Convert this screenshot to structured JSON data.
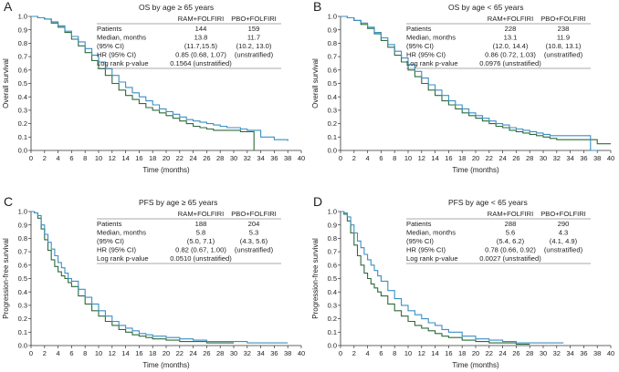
{
  "colors": {
    "ram": "#3a8fc4",
    "pbo": "#2d6b3c",
    "axis": "#333333"
  },
  "chart_data": [
    {
      "type": "line",
      "panel_letter": "A",
      "title": "OS by age ≥ 65 years",
      "xlabel": "Time (months)",
      "ylabel": "Overall survival",
      "xlim": [
        0,
        40
      ],
      "ylim": [
        0,
        1
      ],
      "xticks": [
        "0",
        "2",
        "4",
        "6",
        "8",
        "10",
        "12",
        "14",
        "16",
        "18",
        "20",
        "22",
        "24",
        "26",
        "28",
        "30",
        "32",
        "34",
        "36",
        "38",
        "40"
      ],
      "yticks": [
        "0.0",
        "0.1",
        "0.2",
        "0.3",
        "0.4",
        "0.5",
        "0.6",
        "0.7",
        "0.8",
        "0.9",
        "1.0"
      ],
      "table": {
        "header": [
          "",
          "RAM+FOLFIRI",
          "PBO+FOLFIRI"
        ],
        "rows": [
          [
            "Patients",
            "144",
            "159"
          ],
          [
            "Median, months",
            "13.8",
            "11.7"
          ],
          [
            "(95% CI)",
            "(11.7,15.5)",
            "(10.2, 13.0)"
          ],
          [
            "HR (95% CI)",
            "0.85 (0.68, 1.07)",
            "(unstratified)"
          ],
          [
            "Log rank p-value",
            "0.1564 (unstratified)",
            ""
          ]
        ]
      },
      "series": [
        {
          "name": "RAM+FOLFIRI",
          "x": [
            0,
            1,
            2,
            3,
            4,
            5,
            6,
            7,
            8,
            9,
            10,
            11,
            12,
            13,
            14,
            15,
            16,
            17,
            18,
            19,
            20,
            21,
            22,
            23,
            24,
            25,
            26,
            27,
            28,
            29,
            30,
            31,
            32,
            33,
            34,
            35,
            36,
            37,
            38
          ],
          "y": [
            1.0,
            0.99,
            0.98,
            0.96,
            0.93,
            0.89,
            0.85,
            0.81,
            0.76,
            0.71,
            0.66,
            0.61,
            0.56,
            0.51,
            0.47,
            0.43,
            0.4,
            0.37,
            0.34,
            0.31,
            0.29,
            0.27,
            0.25,
            0.23,
            0.22,
            0.21,
            0.2,
            0.19,
            0.18,
            0.17,
            0.17,
            0.16,
            0.15,
            0.15,
            0.1,
            0.1,
            0.08,
            0.08,
            0.07
          ]
        },
        {
          "name": "PBO+FOLFIRI",
          "x": [
            0,
            1,
            2,
            3,
            4,
            5,
            6,
            7,
            8,
            9,
            10,
            11,
            12,
            13,
            14,
            15,
            16,
            17,
            18,
            19,
            20,
            21,
            22,
            23,
            24,
            25,
            26,
            27,
            28,
            29,
            30,
            31,
            32,
            33
          ],
          "y": [
            1.0,
            0.99,
            0.98,
            0.95,
            0.92,
            0.88,
            0.83,
            0.78,
            0.73,
            0.67,
            0.61,
            0.56,
            0.5,
            0.45,
            0.41,
            0.38,
            0.35,
            0.32,
            0.3,
            0.28,
            0.26,
            0.24,
            0.22,
            0.2,
            0.18,
            0.17,
            0.16,
            0.15,
            0.15,
            0.15,
            0.15,
            0.14,
            0.14,
            0.0
          ]
        }
      ]
    },
    {
      "type": "line",
      "panel_letter": "B",
      "title": "OS by age < 65 years",
      "xlabel": "Time (months)",
      "ylabel": "Overall survival",
      "xlim": [
        0,
        40
      ],
      "ylim": [
        0,
        1
      ],
      "xticks": [
        "0",
        "2",
        "4",
        "6",
        "8",
        "10",
        "12",
        "14",
        "16",
        "18",
        "20",
        "22",
        "24",
        "26",
        "28",
        "30",
        "32",
        "34",
        "36",
        "38",
        "40"
      ],
      "yticks": [
        "0.0",
        "0.1",
        "0.2",
        "0.3",
        "0.4",
        "0.5",
        "0.6",
        "0.7",
        "0.8",
        "0.9",
        "1.0"
      ],
      "table": {
        "header": [
          "",
          "RAM+FOLFIRI",
          "PBO+FOLFIRI"
        ],
        "rows": [
          [
            "Patients",
            "228",
            "238"
          ],
          [
            "Median, months",
            "13.1",
            "11.9"
          ],
          [
            "(95% CI)",
            "(12.0, 14.4)",
            "(10.8, 13.1)"
          ],
          [
            "HR (95% CI)",
            "0.86 (0.72, 1.03)",
            "(unstratified)"
          ],
          [
            "Log rank p-value",
            "0.0976 (unstratified)",
            ""
          ]
        ]
      },
      "series": [
        {
          "name": "RAM+FOLFIRI",
          "x": [
            0,
            1,
            2,
            3,
            4,
            5,
            6,
            7,
            8,
            9,
            10,
            11,
            12,
            13,
            14,
            15,
            16,
            17,
            18,
            19,
            20,
            21,
            22,
            23,
            24,
            25,
            26,
            27,
            28,
            29,
            30,
            31,
            32,
            33,
            34,
            35,
            36,
            37,
            38
          ],
          "y": [
            1.0,
            0.99,
            0.97,
            0.95,
            0.92,
            0.88,
            0.84,
            0.79,
            0.74,
            0.69,
            0.64,
            0.59,
            0.54,
            0.49,
            0.45,
            0.41,
            0.37,
            0.34,
            0.31,
            0.28,
            0.26,
            0.24,
            0.22,
            0.2,
            0.19,
            0.17,
            0.16,
            0.15,
            0.14,
            0.13,
            0.12,
            0.11,
            0.11,
            0.11,
            0.11,
            0.11,
            0.11,
            0.0,
            0.0
          ]
        },
        {
          "name": "PBO+FOLFIRI",
          "x": [
            0,
            1,
            2,
            3,
            4,
            5,
            6,
            7,
            8,
            9,
            10,
            11,
            12,
            13,
            14,
            15,
            16,
            17,
            18,
            19,
            20,
            21,
            22,
            23,
            24,
            25,
            26,
            27,
            28,
            29,
            30,
            31,
            32,
            33,
            34,
            35,
            36,
            37,
            38,
            39,
            40
          ],
          "y": [
            1.0,
            0.99,
            0.97,
            0.94,
            0.91,
            0.87,
            0.82,
            0.77,
            0.71,
            0.66,
            0.6,
            0.55,
            0.5,
            0.45,
            0.41,
            0.37,
            0.34,
            0.31,
            0.28,
            0.26,
            0.24,
            0.22,
            0.2,
            0.18,
            0.17,
            0.15,
            0.14,
            0.13,
            0.12,
            0.11,
            0.1,
            0.09,
            0.08,
            0.08,
            0.08,
            0.08,
            0.08,
            0.08,
            0.05,
            0.05,
            0.05
          ]
        }
      ]
    },
    {
      "type": "line",
      "panel_letter": "C",
      "title": "PFS by age ≥ 65 years",
      "xlabel": "Time (months)",
      "ylabel": "Progression-free survival",
      "xlim": [
        0,
        40
      ],
      "ylim": [
        0,
        1
      ],
      "xticks": [
        "0",
        "2",
        "4",
        "6",
        "8",
        "10",
        "12",
        "14",
        "16",
        "18",
        "20",
        "22",
        "24",
        "26",
        "28",
        "30",
        "32",
        "34",
        "36",
        "38",
        "40"
      ],
      "yticks": [
        "0.0",
        "0.1",
        "0.2",
        "0.3",
        "0.4",
        "0.5",
        "0.6",
        "0.7",
        "0.8",
        "0.9",
        "1.0"
      ],
      "table": {
        "header": [
          "",
          "RAM+FOLFIRI",
          "PBO+FOLFIRI"
        ],
        "rows": [
          [
            "Patients",
            "188",
            "204"
          ],
          [
            "Median, months",
            "5.8",
            "5.3"
          ],
          [
            "(95% CI)",
            "(5.0, 7.1)",
            "(4.3, 5.6)"
          ],
          [
            "HR (95% CI)",
            "0.82 (0.67, 1.00)",
            "(unstratified)"
          ],
          [
            "Log rank p-value",
            "0.0510 (unstratified)",
            ""
          ]
        ]
      },
      "series": [
        {
          "name": "RAM+FOLFIRI",
          "x": [
            0,
            0.5,
            1,
            1.5,
            2,
            2.5,
            3,
            3.5,
            4,
            4.5,
            5,
            5.5,
            6,
            7,
            8,
            9,
            10,
            11,
            12,
            13,
            14,
            15,
            16,
            17,
            18,
            20,
            22,
            24,
            26,
            28,
            30,
            32,
            34,
            36,
            38
          ],
          "y": [
            1.0,
            0.99,
            0.97,
            0.9,
            0.83,
            0.77,
            0.72,
            0.67,
            0.62,
            0.58,
            0.54,
            0.5,
            0.48,
            0.42,
            0.36,
            0.31,
            0.26,
            0.22,
            0.18,
            0.15,
            0.13,
            0.11,
            0.09,
            0.08,
            0.07,
            0.06,
            0.05,
            0.04,
            0.03,
            0.03,
            0.03,
            0.02,
            0.02,
            0.02,
            0.02
          ]
        },
        {
          "name": "PBO+FOLFIRI",
          "x": [
            0,
            0.5,
            1,
            1.5,
            2,
            2.5,
            3,
            3.5,
            4,
            4.5,
            5,
            5.5,
            6,
            7,
            8,
            9,
            10,
            11,
            12,
            13,
            14,
            15,
            16,
            17,
            18,
            20,
            22,
            24,
            26,
            28,
            30
          ],
          "y": [
            1.0,
            0.99,
            0.95,
            0.87,
            0.79,
            0.71,
            0.64,
            0.59,
            0.55,
            0.52,
            0.5,
            0.47,
            0.44,
            0.37,
            0.31,
            0.26,
            0.22,
            0.18,
            0.15,
            0.12,
            0.1,
            0.08,
            0.07,
            0.06,
            0.05,
            0.04,
            0.03,
            0.03,
            0.02,
            0.02,
            0.02
          ]
        }
      ]
    },
    {
      "type": "line",
      "panel_letter": "D",
      "title": "PFS by age < 65 years",
      "xlabel": "Time (months)",
      "ylabel": "Progression-free survival",
      "xlim": [
        0,
        40
      ],
      "ylim": [
        0,
        1
      ],
      "xticks": [
        "0",
        "2",
        "4",
        "6",
        "8",
        "10",
        "12",
        "14",
        "16",
        "18",
        "20",
        "22",
        "24",
        "26",
        "28",
        "30",
        "32",
        "34",
        "36",
        "38",
        "40"
      ],
      "yticks": [
        "0.0",
        "0.1",
        "0.2",
        "0.3",
        "0.4",
        "0.5",
        "0.6",
        "0.7",
        "0.8",
        "0.9",
        "1.0"
      ],
      "table": {
        "header": [
          "",
          "RAM+FOLFIRI",
          "PBO+FOLFIRI"
        ],
        "rows": [
          [
            "Patients",
            "288",
            "290"
          ],
          [
            "Median, months",
            "5.6",
            "4.3"
          ],
          [
            "(95% CI)",
            "(5.4, 6.2)",
            "(4.1, 4.9)"
          ],
          [
            "HR (95% CI)",
            "0.78 (0.66, 0.92)",
            "(unstratified)"
          ],
          [
            "Log rank p-value",
            "0.0027 (unstratified)",
            ""
          ]
        ]
      },
      "series": [
        {
          "name": "RAM+FOLFIRI",
          "x": [
            0,
            0.5,
            1,
            1.5,
            2,
            2.5,
            3,
            3.5,
            4,
            4.5,
            5,
            5.5,
            6,
            7,
            8,
            9,
            10,
            11,
            12,
            13,
            14,
            15,
            16,
            18,
            20,
            22,
            24,
            26,
            28,
            30,
            32,
            33
          ],
          "y": [
            1.0,
            0.99,
            0.96,
            0.9,
            0.84,
            0.78,
            0.73,
            0.68,
            0.64,
            0.6,
            0.56,
            0.52,
            0.48,
            0.41,
            0.35,
            0.3,
            0.26,
            0.23,
            0.2,
            0.17,
            0.15,
            0.12,
            0.1,
            0.07,
            0.05,
            0.04,
            0.03,
            0.02,
            0.02,
            0.02,
            0.02,
            0.02
          ]
        },
        {
          "name": "PBO+FOLFIRI",
          "x": [
            0,
            0.5,
            1,
            1.5,
            2,
            2.5,
            3,
            3.5,
            4,
            4.5,
            5,
            5.5,
            6,
            7,
            8,
            9,
            10,
            11,
            12,
            13,
            14,
            15,
            16,
            18,
            20,
            22,
            24,
            26,
            28
          ],
          "y": [
            1.0,
            0.98,
            0.93,
            0.84,
            0.75,
            0.67,
            0.6,
            0.54,
            0.5,
            0.46,
            0.43,
            0.4,
            0.37,
            0.31,
            0.26,
            0.22,
            0.18,
            0.15,
            0.13,
            0.11,
            0.09,
            0.07,
            0.06,
            0.04,
            0.03,
            0.02,
            0.02,
            0.01,
            0.01
          ]
        }
      ]
    }
  ]
}
